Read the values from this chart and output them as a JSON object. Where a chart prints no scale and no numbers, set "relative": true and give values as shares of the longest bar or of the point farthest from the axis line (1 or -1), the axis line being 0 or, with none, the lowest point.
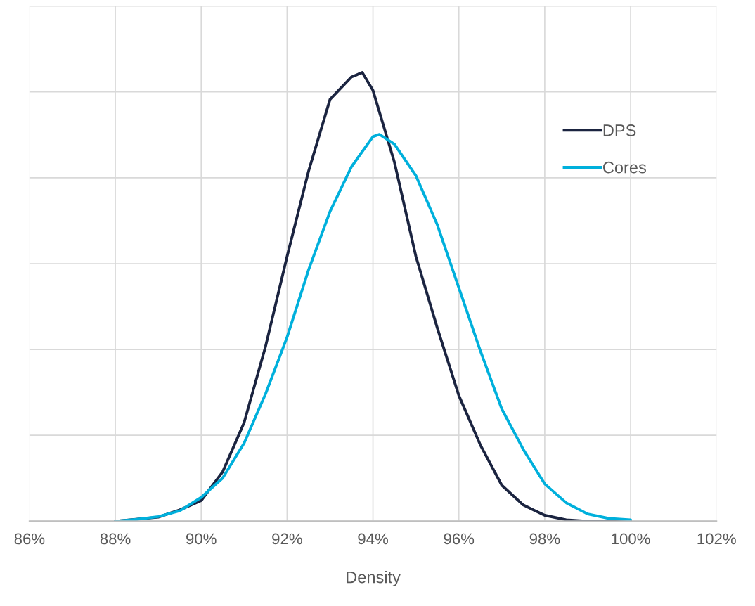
{
  "chart_data": {
    "type": "line",
    "relative": true,
    "xlabel": "Density",
    "xlim": [
      86,
      102
    ],
    "xticks": [
      {
        "value": 86,
        "label": "86%"
      },
      {
        "value": 88,
        "label": "88%"
      },
      {
        "value": 90,
        "label": "90%"
      },
      {
        "value": 92,
        "label": "92%"
      },
      {
        "value": 94,
        "label": "94%"
      },
      {
        "value": 96,
        "label": "96%"
      },
      {
        "value": 98,
        "label": "98%"
      },
      {
        "value": 100,
        "label": "100%"
      },
      {
        "value": 102,
        "label": "102%"
      }
    ],
    "grid": true,
    "legend": "right",
    "marker": "none",
    "line_style": "solid",
    "series": [
      {
        "name": "DPS",
        "color": "#1b2440",
        "x": [
          88,
          89,
          89.5,
          90,
          90.5,
          91,
          91.5,
          92,
          92.5,
          93,
          93.5,
          93.75,
          94,
          94.5,
          95,
          95.5,
          96,
          96.5,
          97,
          97.5,
          98,
          98.5,
          99,
          100
        ],
        "values": [
          0,
          0.009,
          0.025,
          0.046,
          0.11,
          0.22,
          0.39,
          0.59,
          0.78,
          0.94,
          0.99,
          1.0,
          0.96,
          0.8,
          0.59,
          0.43,
          0.28,
          0.17,
          0.08,
          0.036,
          0.013,
          0.003,
          0,
          0
        ]
      },
      {
        "name": "Cores",
        "color": "#00b0dc",
        "x": [
          88,
          88.5,
          89,
          89.5,
          90,
          90.5,
          91,
          91.5,
          92,
          92.5,
          93,
          93.5,
          94,
          94.15,
          94.5,
          95,
          95.5,
          96,
          96.5,
          97,
          97.5,
          98,
          98.5,
          99,
          99.5,
          100
        ],
        "values": [
          0,
          0.004,
          0.01,
          0.023,
          0.053,
          0.096,
          0.174,
          0.284,
          0.41,
          0.56,
          0.69,
          0.79,
          0.857,
          0.862,
          0.84,
          0.77,
          0.66,
          0.52,
          0.38,
          0.25,
          0.16,
          0.083,
          0.041,
          0.016,
          0.006,
          0.003
        ]
      }
    ]
  }
}
